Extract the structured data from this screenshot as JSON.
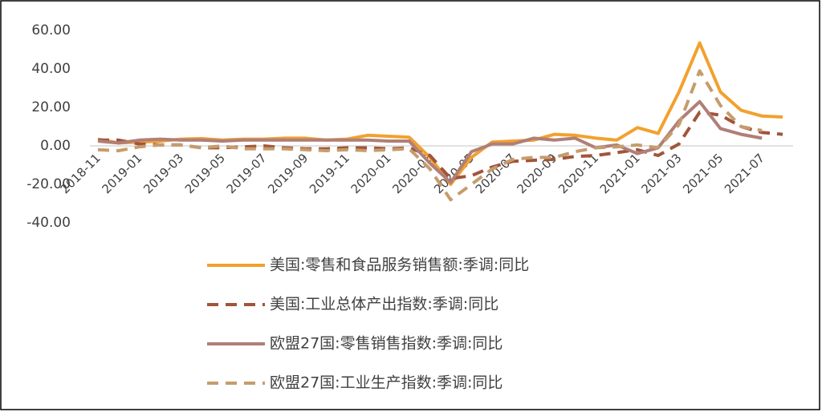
{
  "chart_data": {
    "type": "line",
    "categories": [
      "2018-11",
      null,
      "2019-01",
      null,
      "2019-03",
      null,
      "2019-05",
      null,
      "2019-07",
      null,
      "2019-09",
      null,
      "2019-11",
      null,
      "2020-01",
      null,
      "2020-03",
      null,
      "2020-05",
      null,
      "2020-07",
      null,
      "2020-09",
      null,
      "2020-11",
      null,
      "2021-01",
      null,
      "2021-03",
      null,
      "2021-05",
      null,
      "2021-07",
      null
    ],
    "series": [
      {
        "name": "美国:零售和食品服务销售额:季调:同比",
        "color": "#F2A12E",
        "dashed": false,
        "values": [
          3.5,
          1.5,
          2,
          2.5,
          3.5,
          3.8,
          3,
          3.5,
          3.5,
          4,
          4,
          3,
          3.5,
          5.5,
          5,
          4.5,
          -6,
          -20,
          -6,
          2,
          2.5,
          3,
          6,
          5.5,
          4,
          3,
          9.5,
          6.5,
          28,
          53.5,
          28,
          18.5,
          15.5,
          15
        ]
      },
      {
        "name": "美国:工业总体产出指数:季调:同比",
        "color": "#A0553A",
        "dashed": true,
        "values": [
          3,
          3,
          1,
          0.5,
          0.5,
          -1,
          -1,
          -0.5,
          0,
          -1,
          -1.5,
          -1.5,
          -1,
          -1,
          -1.5,
          -1,
          -5,
          -17,
          -15.5,
          -11,
          -8,
          -7.5,
          -7,
          -5.5,
          -5,
          -3.5,
          -2,
          -5,
          1,
          17.5,
          16,
          10,
          7,
          6
        ]
      },
      {
        "name": "欧盟27国:零售销售指数:季调:同比",
        "color": "#B07F78",
        "dashed": false,
        "values": [
          2.5,
          1.5,
          3,
          3.5,
          3,
          3,
          2.5,
          3,
          3,
          3,
          3,
          3,
          3,
          3,
          2.5,
          2.5,
          -9,
          -19,
          -3,
          1,
          1,
          4,
          3,
          4,
          -1,
          0.5,
          -4,
          -1,
          13,
          23,
          9,
          6,
          4,
          null
        ]
      },
      {
        "name": "欧盟27国:工业生产指数:季调:同比",
        "color": "#C69C6D",
        "dashed": true,
        "values": [
          -2,
          -2.5,
          -0.5,
          0.5,
          0.5,
          -1,
          0,
          -1.5,
          -1.5,
          -1.5,
          -2,
          -2.5,
          -2,
          -2.5,
          -2,
          -1.5,
          -12,
          -28,
          -20,
          -12,
          -7,
          -6,
          -6,
          -3,
          -1,
          -0.5,
          0.5,
          -1,
          11,
          39,
          21,
          10,
          8,
          null
        ]
      }
    ],
    "ylim": [
      -40,
      60
    ],
    "yticks": [
      {
        "value": -40,
        "label": "-40.00"
      },
      {
        "value": -20,
        "label": "-20.00"
      },
      {
        "value": 0,
        "label": "0.00"
      },
      {
        "value": 20,
        "label": "20.00"
      },
      {
        "value": 40,
        "label": "40.00"
      },
      {
        "value": 60,
        "label": "60.00"
      }
    ],
    "grid": false
  }
}
